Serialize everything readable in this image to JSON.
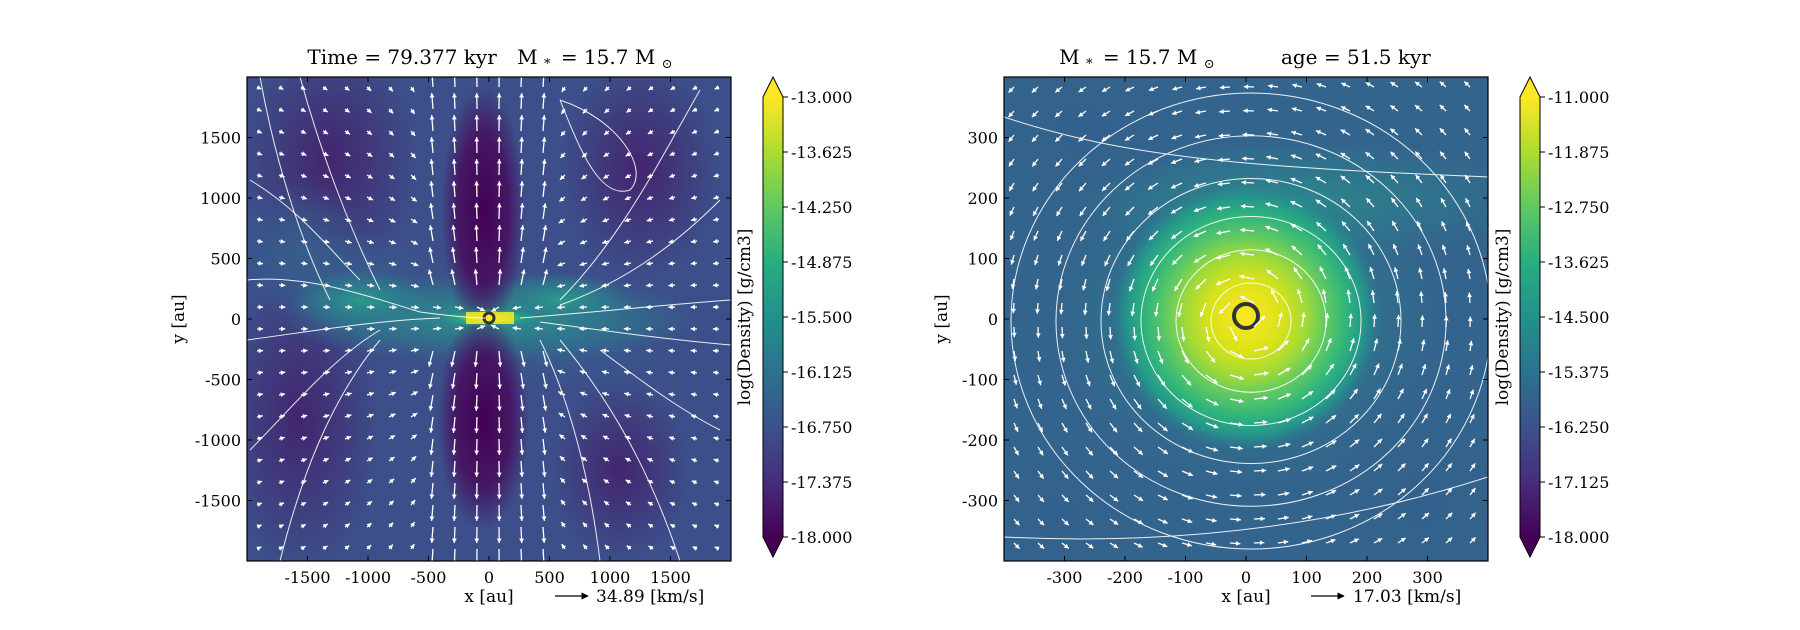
{
  "figure": {
    "panels": [
      {
        "title_left": "Time = 79.377 kyr",
        "title_mass": "M",
        "title_mass_sub": "*",
        "title_mass_value": "= 15.7 M",
        "title_mass_sun": "⊙",
        "title_right": "",
        "scale_arrow_label": "34.89 [km/s]"
      },
      {
        "title_left": "",
        "title_mass": "M",
        "title_mass_sub": "*",
        "title_mass_value": "= 15.7 M",
        "title_mass_sun": "⊙",
        "title_right": "age = 51.5 kyr",
        "scale_arrow_label": "17.03 [km/s]"
      }
    ]
  },
  "chart_data": [
    {
      "type": "heatmap",
      "title": "Time = 79.377 kyr   M* = 15.7 M⊙",
      "xlabel": "x [au]",
      "ylabel": "y [au]",
      "xlim": [
        -2000,
        2000
      ],
      "ylim": [
        -2000,
        2000
      ],
      "xticks": [
        -1500,
        -1000,
        -500,
        0,
        500,
        1000,
        1500
      ],
      "yticks": [
        -1500,
        -1000,
        -500,
        0,
        500,
        1000,
        1500
      ],
      "colorbar": {
        "label": "log(Density) [g/cm3]",
        "min": -18.0,
        "max": -13.0,
        "ticks": [
          "-13.000",
          "-13.625",
          "-14.250",
          "-14.875",
          "-15.500",
          "-16.125",
          "-16.750",
          "-17.375",
          "-18.000"
        ],
        "colormap": "viridis"
      },
      "features": {
        "star_position": [
          0,
          0
        ],
        "outflow_cavities": "bipolar low-density lobes along y-axis",
        "disk": "thin high-density equatorial disk along x-axis"
      },
      "vector_scale": {
        "speed": 34.89,
        "unit": "km/s"
      }
    },
    {
      "type": "heatmap",
      "title": "M* = 15.7 M⊙   age = 51.5 kyr",
      "xlabel": "x [au]",
      "ylabel": "y [au]",
      "xlim": [
        -400,
        400
      ],
      "ylim": [
        -400,
        400
      ],
      "xticks": [
        -300,
        -200,
        -100,
        0,
        100,
        200,
        300
      ],
      "yticks": [
        -300,
        -200,
        -100,
        0,
        100,
        200,
        300
      ],
      "colorbar": {
        "label": "log(Density) [g/cm3]",
        "min": -18.0,
        "max": -11.0,
        "ticks": [
          "-11.000",
          "-11.875",
          "-12.750",
          "-13.625",
          "-14.500",
          "-15.375",
          "-16.250",
          "-17.125",
          "-18.000"
        ],
        "colormap": "viridis"
      },
      "features": {
        "star_position": [
          0,
          0
        ],
        "disk": "face-on rotating dense disk centered on star",
        "rotation": "counter-clockwise"
      },
      "vector_scale": {
        "speed": 17.03,
        "unit": "km/s"
      }
    }
  ]
}
